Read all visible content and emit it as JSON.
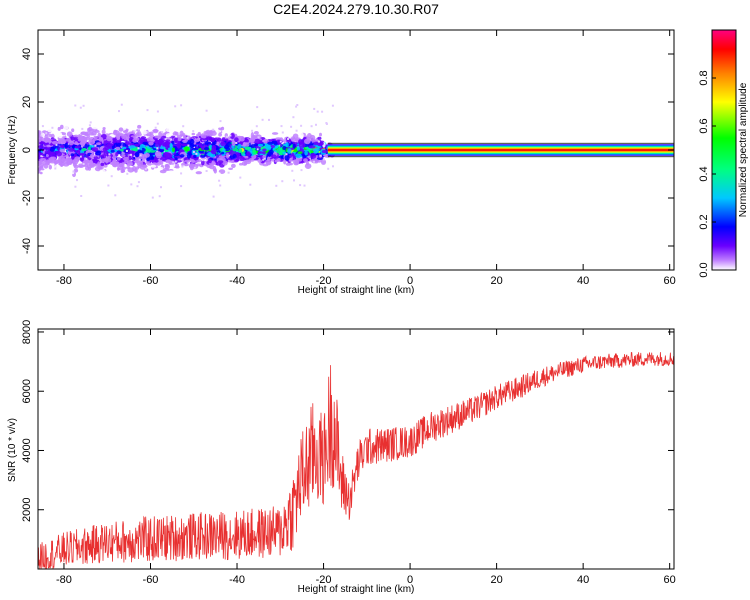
{
  "figure": {
    "title": "C2E4.2024.279.10.30.R07"
  },
  "chart_data": [
    {
      "type": "heatmap",
      "title": "C2E4.2024.279.10.30.R07",
      "xlabel": "Height of straight line (km)",
      "ylabel": "Frequency (Hz)",
      "xlim": [
        -86,
        61
      ],
      "ylim": [
        -50,
        50
      ],
      "xticks": [
        -80,
        -60,
        -40,
        -20,
        0,
        20,
        40,
        60
      ],
      "yticks": [
        -40,
        -20,
        0,
        20,
        40
      ],
      "colorbar": {
        "label": "Normalized spectral amplitude",
        "range": [
          0,
          1
        ],
        "ticks": [
          0.0,
          0.2,
          0.4,
          0.6,
          0.8
        ],
        "colormap": [
          "#ffffff",
          "#c080ff",
          "#6a00ff",
          "#0000ff",
          "#00c8ff",
          "#00ff80",
          "#00ff00",
          "#ffff00",
          "#ff8000",
          "#ff0000",
          "#ff0080"
        ]
      },
      "description_points": {
        "carrier_frequency_hz": 0,
        "broadening_segments": [
          {
            "x_from": -86,
            "x_to": -60,
            "halfwidth_hz": 8
          },
          {
            "x_from": -60,
            "x_to": -40,
            "halfwidth_hz": 7
          },
          {
            "x_from": -40,
            "x_to": -20,
            "halfwidth_hz": 5
          },
          {
            "x_from": -20,
            "x_to": 61,
            "halfwidth_hz": 2
          }
        ]
      }
    },
    {
      "type": "line",
      "xlabel": "Height of straight line (km)",
      "ylabel": "SNR (10 * v/v)",
      "xlim": [
        -86,
        61
      ],
      "ylim": [
        0,
        8100
      ],
      "xticks": [
        -80,
        -60,
        -40,
        -20,
        0,
        20,
        40,
        60
      ],
      "yticks": [
        2000,
        4000,
        6000,
        8000
      ],
      "series": [
        {
          "color": "#e83030",
          "trend_x": [
            -86,
            -80,
            -70,
            -60,
            -50,
            -40,
            -30,
            -27,
            -25,
            -22,
            -20,
            -18,
            -16,
            -14,
            -12,
            -10,
            -5,
            0,
            5,
            10,
            15,
            20,
            25,
            30,
            35,
            40,
            45,
            50,
            55,
            61
          ],
          "trend_y": [
            350,
            650,
            900,
            1000,
            1100,
            1150,
            1250,
            2000,
            3100,
            4000,
            3600,
            5300,
            3000,
            2300,
            3600,
            4100,
            4200,
            4300,
            4800,
            5100,
            5400,
            5800,
            6100,
            6450,
            6700,
            6900,
            7000,
            7050,
            7100,
            7100
          ],
          "noise_amplitude": [
            500,
            600,
            700,
            800,
            800,
            850,
            900,
            1400,
            1600,
            1900,
            1500,
            2500,
            1200,
            700,
            700,
            650,
            600,
            550,
            550,
            500,
            450,
            420,
            400,
            350,
            300,
            280,
            260,
            250,
            250,
            250
          ]
        }
      ]
    }
  ]
}
